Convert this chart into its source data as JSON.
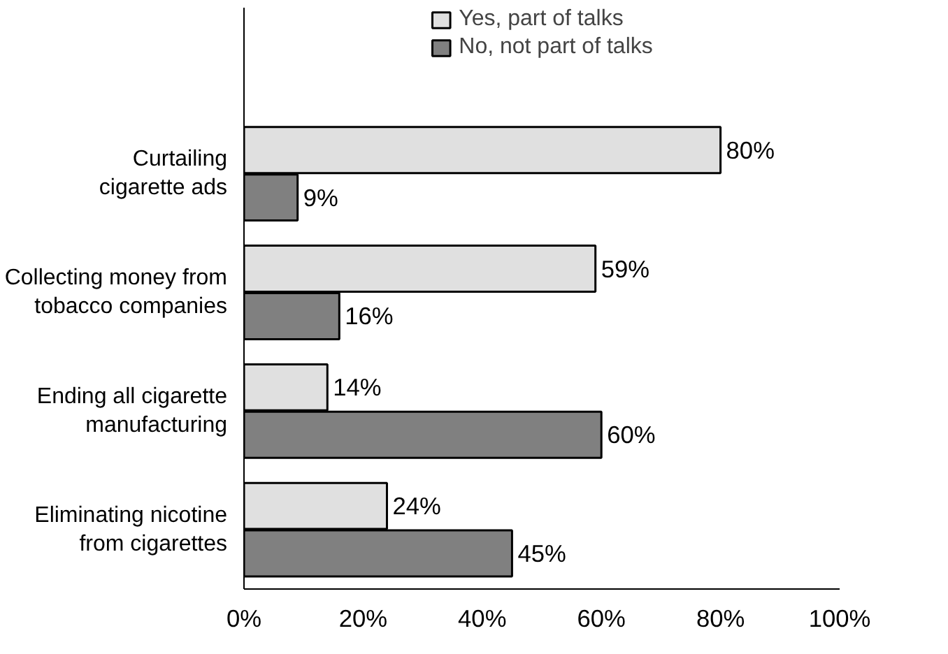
{
  "chart_data": {
    "type": "bar",
    "orientation": "horizontal",
    "categories": [
      "Curtailing\ncigarette ads",
      "Collecting money from\ntobacco companies",
      "Ending all cigarette\nmanufacturing",
      "Eliminating nicotine\nfrom cigarettes"
    ],
    "series": [
      {
        "name": "Yes, part of talks",
        "color": "#e0e0e0",
        "values": [
          80,
          59,
          14,
          24
        ],
        "value_labels": [
          "80%",
          "59%",
          "14%",
          "24%"
        ]
      },
      {
        "name": "No, not part of talks",
        "color": "#808080",
        "values": [
          9,
          16,
          60,
          45
        ],
        "value_labels": [
          "9%",
          "16%",
          "60%",
          "45%"
        ]
      }
    ],
    "xlim": [
      0,
      100
    ],
    "xticks": [
      {
        "value": 0,
        "label": "0%"
      },
      {
        "value": 20,
        "label": "20%"
      },
      {
        "value": 40,
        "label": "40%"
      },
      {
        "value": 60,
        "label": "60%"
      },
      {
        "value": 80,
        "label": "80%"
      },
      {
        "value": 100,
        "label": "100%"
      }
    ],
    "grid": false,
    "legend": "top"
  }
}
